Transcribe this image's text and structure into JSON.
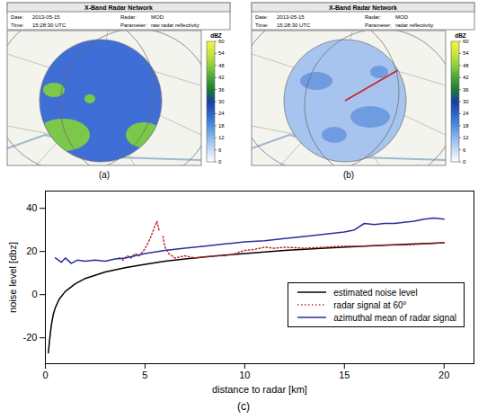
{
  "chart_data": [
    {
      "type": "map",
      "label": "(a)",
      "header": {
        "title": "X-Band Radar Network",
        "fields": [
          {
            "label": "Date:",
            "value": "2013-05-15"
          },
          {
            "label": "Time:",
            "value": "15:28:30 UTC"
          },
          {
            "label": "Radar:",
            "value": "MOD"
          },
          {
            "label": "Parameter:",
            "value": "raw radar reflectivity"
          }
        ]
      },
      "colorbar": {
        "label": "dBZ",
        "range": [
          0,
          60
        ],
        "ticks": [
          0,
          6,
          12,
          18,
          24,
          30,
          36,
          42,
          48,
          54,
          60
        ]
      }
    },
    {
      "type": "map",
      "label": "(b)",
      "header": {
        "title": "X-Band Radar Network",
        "fields": [
          {
            "label": "Date:",
            "value": "2013-05-15"
          },
          {
            "label": "Time:",
            "value": "15:28:30 UTC"
          },
          {
            "label": "Radar:",
            "value": "MOD"
          },
          {
            "label": "Parameter:",
            "value": "radar reflectivity"
          }
        ]
      },
      "colorbar": {
        "label": "dBZ",
        "range": [
          0,
          60
        ],
        "ticks": [
          0,
          6,
          12,
          18,
          24,
          30,
          36,
          42,
          48,
          54,
          60
        ]
      }
    },
    {
      "type": "line",
      "label": "(c)",
      "x_label": "distance to radar [km]",
      "y_label": "noise level [dbz]",
      "xlim": [
        0,
        21.5
      ],
      "xticks": [
        0,
        5,
        10,
        15,
        20
      ],
      "ylim": [
        -32,
        48
      ],
      "yticks": [
        -20,
        0,
        20,
        40
      ],
      "legend": "lower right",
      "series": [
        {
          "name": "estimated noise level",
          "color": "#000000",
          "line_style": "solid",
          "x": [
            0.15,
            0.2,
            0.3,
            0.4,
            0.5,
            0.7,
            1,
            1.5,
            2,
            3,
            4,
            5,
            6,
            7,
            8,
            9,
            10,
            12,
            14,
            16,
            18,
            20
          ],
          "values": [
            -27,
            -22,
            -14,
            -9,
            -6,
            -2,
            1.5,
            5,
            7.5,
            10.5,
            12.5,
            14,
            15.5,
            16.5,
            17.5,
            18.3,
            19,
            20.5,
            21.5,
            22.5,
            23.3,
            24
          ]
        },
        {
          "name": "radar signal at 60°",
          "color": "#c0282d",
          "line_style": "dotted",
          "x": [
            3.7,
            3.9,
            4.1,
            4.3,
            4.5,
            4.7,
            4.9,
            5.1,
            5.3,
            5.5,
            5.6,
            5.7,
            5.8,
            5.9,
            6.0,
            6.2,
            6.5,
            7,
            7.5,
            8,
            8.5,
            9,
            9.5,
            10,
            10.5,
            11,
            11.5,
            12,
            13,
            14,
            15,
            16,
            17,
            18,
            19,
            20
          ],
          "values": [
            17,
            16,
            18,
            17,
            19,
            18,
            20,
            23,
            27,
            32,
            34,
            30,
            null,
            27,
            22,
            19,
            17,
            18,
            17,
            17.5,
            18,
            18,
            19,
            20.5,
            21,
            22,
            21.5,
            22,
            21.5,
            22,
            22.5,
            22.5,
            23,
            23,
            23.5,
            24
          ]
        },
        {
          "name": "azimuthal mean of radar signal",
          "color": "#2b2f9e",
          "line_style": "solid",
          "x": [
            0.5,
            0.8,
            1,
            1.3,
            1.6,
            2,
            2.5,
            3,
            3.5,
            4,
            4.5,
            5,
            6,
            7,
            8,
            9,
            10,
            11,
            12,
            13,
            14,
            15,
            15.5,
            16,
            16.5,
            17,
            17.5,
            18,
            18.5,
            19,
            19.5,
            20
          ],
          "values": [
            17,
            15,
            17,
            14.5,
            16,
            15.5,
            16,
            15.5,
            16.5,
            17,
            18,
            19,
            20.5,
            21.5,
            22.5,
            23.5,
            24.5,
            25,
            26,
            27,
            28,
            29,
            30,
            33,
            32.5,
            33,
            33,
            33.5,
            34,
            35,
            35.5,
            35
          ]
        }
      ]
    }
  ]
}
